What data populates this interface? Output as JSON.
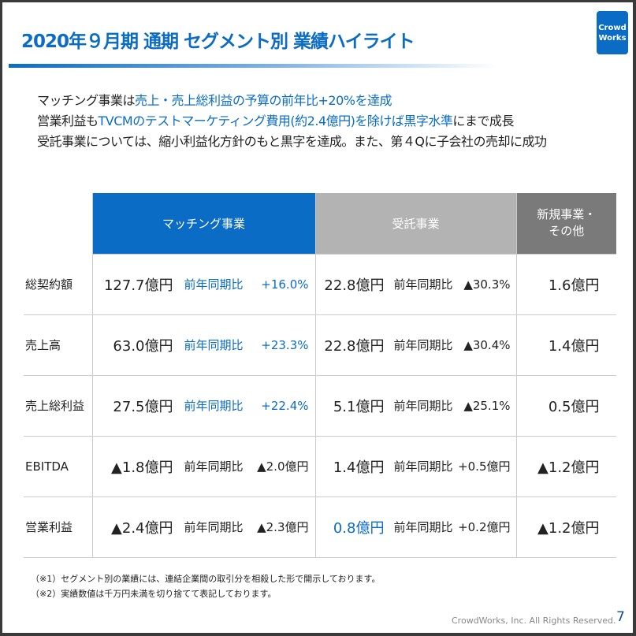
{
  "title": "2020年９月期 通期 セグメント別 業績ハイライト",
  "logo": [
    "Crowd",
    "Works"
  ],
  "bullets": [
    {
      "a": "マッチング事業は",
      "b": "売上・売上総利益の予算の前年比+20%を達成",
      "c": ""
    },
    {
      "a": "営業利益も",
      "b": "TVCMのテストマーケティング費用(約2.4億円)を除けば黒字水準",
      "c": "にまで成長"
    },
    {
      "a": "受託事業については、縮小利益化方針のもと黒字を達成。また、第４Qに子会社の売却に成功",
      "b": "",
      "c": ""
    }
  ],
  "table": {
    "headers": [
      "マッチング事業",
      "受託事業",
      "新規事業・",
      "その他"
    ],
    "rows": [
      {
        "label": "総契約額",
        "m": "127.7億円",
        "ml": "前年同期比",
        "mc": "+16.0%",
        "o": "22.8億円",
        "ol": "前年同期比",
        "oc": "▲30.3%",
        "n": "1.6億円"
      },
      {
        "label": "売上高",
        "m": "63.0億円",
        "ml": "前年同期比",
        "mc": "+23.3%",
        "o": "22.8億円",
        "ol": "前年同期比",
        "oc": "▲30.4%",
        "n": "1.4億円"
      },
      {
        "label": "売上総利益",
        "m": "27.5億円",
        "ml": "前年同期比",
        "mc": "+22.4%",
        "o": "5.1億円",
        "ol": "前年同期比",
        "oc": "▲25.1%",
        "n": "0.5億円"
      },
      {
        "label": "EBITDA",
        "m": "▲1.8億円",
        "ml": "前年同期比",
        "mc": "▲2.0億円",
        "o": "1.4億円",
        "ol": "前年同期比",
        "oc": "+0.5億円",
        "n": "▲1.2億円"
      },
      {
        "label": "営業利益",
        "m": "▲2.4億円",
        "ml": "前年同期比",
        "mc": "▲2.3億円",
        "o": "0.8億円",
        "ol": "前年同期比",
        "oc": "+0.2億円",
        "n": "▲1.2億円"
      }
    ]
  },
  "notes": [
    "（※1）セグメント別の業績には、連結企業間の取引分を相殺した形で開示しております。",
    "（※2）実績数値は千万円未満を切り捨てて表記しております。"
  ],
  "footer": {
    "copyright": "CrowdWorks, Inc. All Rights Reserved.",
    "page": "7"
  }
}
